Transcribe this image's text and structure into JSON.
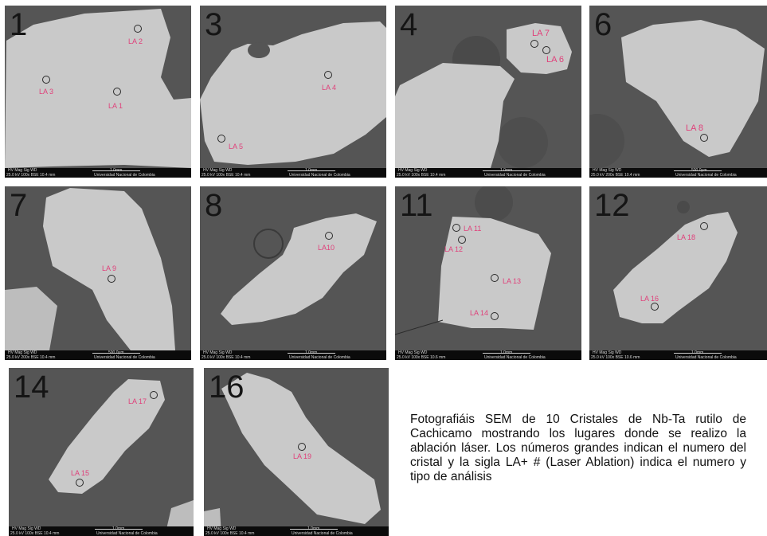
{
  "panels": [
    {
      "number": "1",
      "labels": [
        "LA 2",
        "LA 3",
        "LA 1"
      ],
      "bar": {
        "line1": "HV   Mag  Sig    WD",
        "line2": "25.0 kV 100x BSE 10.4 mm",
        "scale": "1.0mm",
        "university": "Universidad Nacional de Colombia"
      }
    },
    {
      "number": "3",
      "labels": [
        "LA 4",
        "LA 5"
      ],
      "bar": {
        "line1": "HV   Mag  Sig    WD",
        "line2": "25.0 kV 100x BSE 10.4 mm",
        "scale": "1.0mm",
        "university": "Universidad Nacional de Colombia"
      }
    },
    {
      "number": "4",
      "labels": [
        "LA 7",
        "LA 6"
      ],
      "bar": {
        "line1": "HV   Mag  Sig    WD",
        "line2": "25.0 kV 100x BSE 10.4 mm",
        "scale": "1.0mm",
        "university": "Universidad Nacional de Colombia"
      }
    },
    {
      "number": "6",
      "labels": [
        "LA 8"
      ],
      "bar": {
        "line1": "HV   Mag  Sig    WD",
        "line2": "25.0 kV 200x BSE 10.4 mm",
        "scale": "500.0µm",
        "university": "Universidad Nacional de Colombia"
      }
    },
    {
      "number": "7",
      "labels": [
        "LA 9"
      ],
      "bar": {
        "line1": "HV   Mag  Sig    WD",
        "line2": "25.0 kV 200x BSE 10.4 mm",
        "scale": "500.0µm",
        "university": "Universidad Nacional de Colombia"
      }
    },
    {
      "number": "8",
      "labels": [
        "LA10"
      ],
      "bar": {
        "line1": "HV   Mag  Sig    WD",
        "line2": "25.0 kV 100x BSE 10.4 mm",
        "scale": "1.0mm",
        "university": "Universidad Nacional de Colombia"
      }
    },
    {
      "number": "11",
      "labels": [
        "LA 11",
        "LA 12",
        "LA 13",
        "LA 14"
      ],
      "bar": {
        "line1": "HV   Mag  Sig    WD",
        "line2": "25.0 kV 100x BSE 10.6 mm",
        "scale": "1.0mm",
        "university": "Universidad Nacional de Colombia"
      }
    },
    {
      "number": "12",
      "labels": [
        "LA 18",
        "LA 16"
      ],
      "bar": {
        "line1": "HV   Mag  Sig    WD",
        "line2": "25.0 kV 100x BSE 10.6 mm",
        "scale": "1.0mm",
        "university": "Universidad Nacional de Colombia"
      }
    },
    {
      "number": "14",
      "labels": [
        "LA 17",
        "LA 15"
      ],
      "bar": {
        "line1": "HV   Mag  Sig    WD",
        "line2": "25.0 kV 100x BSE 10.4 mm",
        "scale": "1.0mm",
        "university": "Universidad Nacional de Colombia"
      }
    },
    {
      "number": "16",
      "labels": [
        "LA 19"
      ],
      "bar": {
        "line1": "HV   Mag  Sig    WD",
        "line2": "25.0 kV 100x BSE 10.4 mm",
        "scale": "1.0mm",
        "university": "Universidad Nacional de Colombia"
      }
    }
  ],
  "caption": "Fotografiáis SEM de 10 Cristales de Nb-Ta rutilo de Cachicamo mostrando los lugares donde se realizo la ablación láser. Los números grandes indican el numero del cristal y la sigla LA+ # (Laser Ablation) indica el  numero y tipo de análisis",
  "colors": {
    "label": "#e0407a",
    "background": "#555555",
    "crystal": "#c9c9c9"
  }
}
